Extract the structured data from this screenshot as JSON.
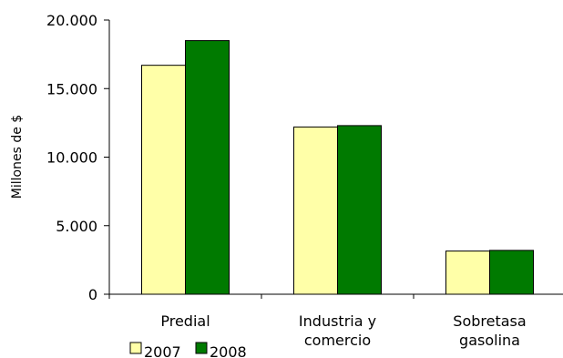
{
  "chart_data": {
    "type": "bar",
    "categories": [
      [
        "Predial"
      ],
      [
        "Industria y",
        "comercio"
      ],
      [
        "Sobretasa",
        "gasolina"
      ]
    ],
    "series": [
      {
        "name": "2007",
        "color": "#ffffa8",
        "values": [
          16700,
          12200,
          3150
        ]
      },
      {
        "name": "2008",
        "color": "#007a00",
        "values": [
          18500,
          12300,
          3200
        ]
      }
    ],
    "ylabel": "Millones de $",
    "ylim": [
      0,
      20000
    ],
    "yticks": [
      0,
      5000,
      10000,
      15000,
      20000
    ],
    "ytick_labels": [
      "0",
      "5.000",
      "10.000",
      "15.000",
      "20.000"
    ],
    "grid": false,
    "legend_position": "bottom-left"
  }
}
